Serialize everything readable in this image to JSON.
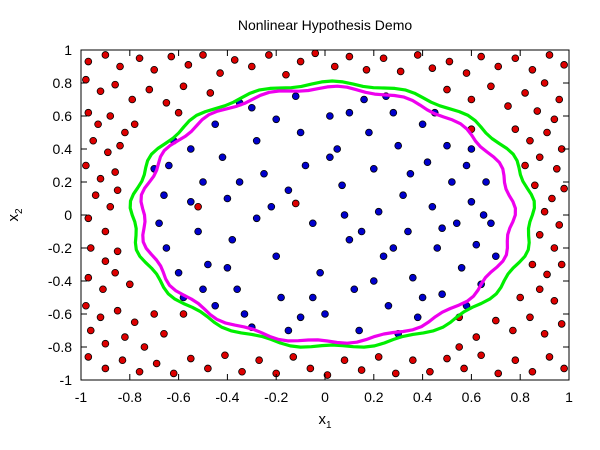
{
  "chart_data": {
    "type": "scatter",
    "title": "Nonlinear Hypothesis Demo",
    "xlabel": "x",
    "xlabel_sub": "1",
    "ylabel": "x",
    "ylabel_sub": "2",
    "xlim": [
      -1,
      1
    ],
    "ylim": [
      -1,
      1
    ],
    "xticks": [
      "-1",
      "-0.8",
      "-0.6",
      "-0.4",
      "-0.2",
      "0",
      "0.2",
      "0.4",
      "0.6",
      "0.8",
      "1"
    ],
    "yticks": [
      "-1",
      "-0.8",
      "-0.6",
      "-0.4",
      "-0.2",
      "0",
      "0.2",
      "0.4",
      "0.6",
      "0.8",
      "1"
    ],
    "grid": false,
    "legend": false,
    "series": [
      {
        "kind": "points",
        "color": "#dd0000",
        "points": [
          [
            -0.97,
            0.93
          ],
          [
            -0.9,
            0.97
          ],
          [
            -0.84,
            0.9
          ],
          [
            -0.76,
            0.95
          ],
          [
            -0.7,
            0.88
          ],
          [
            -0.63,
            0.96
          ],
          [
            -0.56,
            0.91
          ],
          [
            -0.5,
            0.97
          ],
          [
            -0.43,
            0.86
          ],
          [
            -0.37,
            0.94
          ],
          [
            -0.3,
            0.9
          ],
          [
            -0.23,
            0.97
          ],
          [
            -0.16,
            0.85
          ],
          [
            -0.1,
            0.93
          ],
          [
            -0.04,
            0.98
          ],
          [
            0.04,
            0.9
          ],
          [
            0.1,
            0.96
          ],
          [
            0.17,
            0.88
          ],
          [
            0.24,
            0.95
          ],
          [
            0.31,
            0.87
          ],
          [
            0.38,
            0.97
          ],
          [
            0.44,
            0.89
          ],
          [
            0.51,
            0.93
          ],
          [
            0.58,
            0.86
          ],
          [
            0.64,
            0.96
          ],
          [
            0.71,
            0.9
          ],
          [
            0.78,
            0.95
          ],
          [
            0.85,
            0.88
          ],
          [
            0.92,
            0.97
          ],
          [
            0.98,
            0.91
          ],
          [
            -0.98,
            0.82
          ],
          [
            -0.92,
            0.75
          ],
          [
            -0.86,
            0.79
          ],
          [
            -0.79,
            0.7
          ],
          [
            -0.72,
            0.76
          ],
          [
            -0.65,
            0.68
          ],
          [
            -0.58,
            0.78
          ],
          [
            -0.47,
            0.74
          ],
          [
            0.5,
            0.76
          ],
          [
            0.6,
            0.7
          ],
          [
            0.68,
            0.78
          ],
          [
            0.75,
            0.66
          ],
          [
            0.82,
            0.74
          ],
          [
            0.9,
            0.8
          ],
          [
            0.96,
            0.7
          ],
          [
            0.87,
            0.63
          ],
          [
            0.94,
            0.58
          ],
          [
            -0.97,
            0.62
          ],
          [
            -0.93,
            0.55
          ],
          [
            -0.88,
            0.6
          ],
          [
            -0.82,
            0.5
          ],
          [
            -0.95,
            0.45
          ],
          [
            -0.89,
            0.38
          ],
          [
            -0.84,
            0.42
          ],
          [
            -0.78,
            0.55
          ],
          [
            0.78,
            0.52
          ],
          [
            0.84,
            0.45
          ],
          [
            0.91,
            0.5
          ],
          [
            0.97,
            0.4
          ],
          [
            0.88,
            0.35
          ],
          [
            0.82,
            0.3
          ],
          [
            0.95,
            0.28
          ],
          [
            -0.98,
            0.3
          ],
          [
            -0.92,
            0.22
          ],
          [
            -0.86,
            0.26
          ],
          [
            -0.94,
            0.12
          ],
          [
            -0.88,
            0.05
          ],
          [
            -0.97,
            -0.02
          ],
          [
            -0.9,
            -0.1
          ],
          [
            -0.85,
            0.15
          ],
          [
            0.86,
            0.18
          ],
          [
            0.93,
            0.1
          ],
          [
            0.98,
            0.16
          ],
          [
            0.9,
            0.02
          ],
          [
            0.96,
            -0.06
          ],
          [
            0.88,
            -0.12
          ],
          [
            0.94,
            -0.2
          ],
          [
            -0.96,
            -0.2
          ],
          [
            -0.9,
            -0.28
          ],
          [
            -0.85,
            -0.22
          ],
          [
            -0.97,
            -0.38
          ],
          [
            -0.91,
            -0.45
          ],
          [
            -0.86,
            -0.35
          ],
          [
            -0.8,
            -0.42
          ],
          [
            0.85,
            -0.3
          ],
          [
            0.91,
            -0.36
          ],
          [
            0.97,
            -0.3
          ],
          [
            0.88,
            -0.45
          ],
          [
            0.8,
            -0.5
          ],
          [
            0.94,
            -0.52
          ],
          [
            -0.98,
            -0.55
          ],
          [
            -0.92,
            -0.62
          ],
          [
            -0.85,
            -0.58
          ],
          [
            -0.78,
            -0.65
          ],
          [
            -0.7,
            -0.6
          ],
          [
            -0.96,
            -0.7
          ],
          [
            -0.9,
            -0.78
          ],
          [
            -0.82,
            -0.74
          ],
          [
            -0.74,
            -0.8
          ],
          [
            -0.66,
            -0.72
          ],
          [
            0.7,
            -0.64
          ],
          [
            0.77,
            -0.7
          ],
          [
            0.84,
            -0.62
          ],
          [
            0.9,
            -0.72
          ],
          [
            0.97,
            -0.66
          ],
          [
            0.62,
            -0.74
          ],
          [
            0.55,
            -0.8
          ],
          [
            -0.97,
            -0.86
          ],
          [
            -0.9,
            -0.93
          ],
          [
            -0.83,
            -0.88
          ],
          [
            -0.76,
            -0.95
          ],
          [
            -0.69,
            -0.9
          ],
          [
            -0.62,
            -0.96
          ],
          [
            -0.55,
            -0.87
          ],
          [
            -0.48,
            -0.93
          ],
          [
            -0.41,
            -0.85
          ],
          [
            -0.34,
            -0.95
          ],
          [
            -0.27,
            -0.88
          ],
          [
            -0.2,
            -0.96
          ],
          [
            -0.13,
            -0.86
          ],
          [
            -0.06,
            -0.93
          ],
          [
            0.01,
            -0.97
          ],
          [
            0.08,
            -0.88
          ],
          [
            0.15,
            -0.94
          ],
          [
            0.22,
            -0.86
          ],
          [
            0.29,
            -0.96
          ],
          [
            0.36,
            -0.88
          ],
          [
            0.43,
            -0.95
          ],
          [
            0.5,
            -0.87
          ],
          [
            0.57,
            -0.93
          ],
          [
            0.64,
            -0.85
          ],
          [
            0.71,
            -0.96
          ],
          [
            0.78,
            -0.88
          ],
          [
            0.85,
            -0.95
          ],
          [
            0.92,
            -0.86
          ],
          [
            0.98,
            -0.93
          ],
          [
            -0.12,
            0.07
          ],
          [
            -0.52,
            0.05
          ],
          [
            -0.58,
            -0.6
          ],
          [
            -0.6,
            0.62
          ],
          [
            0.55,
            -0.62
          ],
          [
            0.6,
            0.52
          ]
        ]
      },
      {
        "kind": "points",
        "color": "#0000cc",
        "points": [
          [
            -0.7,
            0.28
          ],
          [
            -0.66,
            0.12
          ],
          [
            -0.68,
            -0.05
          ],
          [
            -0.65,
            -0.2
          ],
          [
            -0.6,
            -0.35
          ],
          [
            -0.55,
            0.4
          ],
          [
            -0.5,
            0.2
          ],
          [
            -0.52,
            -0.1
          ],
          [
            -0.48,
            -0.3
          ],
          [
            -0.45,
            0.55
          ],
          [
            -0.42,
            0.35
          ],
          [
            -0.4,
            0.1
          ],
          [
            -0.38,
            -0.15
          ],
          [
            -0.36,
            -0.45
          ],
          [
            -0.33,
            -0.6
          ],
          [
            -0.3,
            0.65
          ],
          [
            -0.28,
            0.45
          ],
          [
            -0.25,
            0.25
          ],
          [
            -0.22,
            0.05
          ],
          [
            -0.2,
            -0.25
          ],
          [
            -0.18,
            -0.5
          ],
          [
            -0.15,
            -0.7
          ],
          [
            -0.12,
            0.72
          ],
          [
            -0.1,
            0.5
          ],
          [
            -0.08,
            0.3
          ],
          [
            -0.05,
            -0.05
          ],
          [
            -0.02,
            -0.35
          ],
          [
            0.0,
            -0.6
          ],
          [
            0.02,
            0.6
          ],
          [
            0.05,
            0.4
          ],
          [
            0.07,
            0.18
          ],
          [
            0.1,
            -0.15
          ],
          [
            0.12,
            -0.45
          ],
          [
            0.14,
            -0.7
          ],
          [
            0.16,
            0.7
          ],
          [
            0.18,
            0.5
          ],
          [
            0.2,
            0.28
          ],
          [
            0.22,
            0.02
          ],
          [
            0.24,
            -0.25
          ],
          [
            0.26,
            -0.55
          ],
          [
            0.28,
            0.62
          ],
          [
            0.3,
            0.42
          ],
          [
            0.32,
            0.12
          ],
          [
            0.34,
            -0.1
          ],
          [
            0.36,
            -0.38
          ],
          [
            0.38,
            -0.62
          ],
          [
            0.4,
            0.55
          ],
          [
            0.42,
            0.32
          ],
          [
            0.44,
            0.05
          ],
          [
            0.46,
            -0.2
          ],
          [
            0.48,
            -0.48
          ],
          [
            0.5,
            0.42
          ],
          [
            0.52,
            0.2
          ],
          [
            0.54,
            -0.05
          ],
          [
            0.56,
            -0.32
          ],
          [
            0.58,
            0.3
          ],
          [
            0.6,
            0.08
          ],
          [
            0.62,
            -0.18
          ],
          [
            0.64,
            -0.42
          ],
          [
            0.66,
            0.2
          ],
          [
            0.68,
            -0.05
          ],
          [
            0.7,
            -0.25
          ],
          [
            -0.62,
            0.45
          ],
          [
            -0.58,
            -0.5
          ],
          [
            -0.35,
            0.68
          ],
          [
            -0.3,
            -0.68
          ],
          [
            0.25,
            0.72
          ],
          [
            0.3,
            -0.72
          ],
          [
            -0.45,
            -0.55
          ],
          [
            0.45,
            0.62
          ],
          [
            0.58,
            -0.55
          ],
          [
            -0.64,
            0.3
          ],
          [
            0.08,
            0.0
          ],
          [
            -0.15,
            0.15
          ],
          [
            0.15,
            -0.1
          ],
          [
            -0.28,
            -0.02
          ],
          [
            0.35,
            0.25
          ],
          [
            -0.4,
            -0.32
          ],
          [
            0.02,
            0.35
          ],
          [
            -0.05,
            -0.5
          ],
          [
            0.48,
            -0.08
          ],
          [
            -0.55,
            0.08
          ],
          [
            0.6,
            0.4
          ],
          [
            -0.2,
            0.58
          ],
          [
            0.1,
            0.62
          ],
          [
            -0.1,
            -0.62
          ],
          [
            0.4,
            -0.5
          ],
          [
            -0.5,
            -0.45
          ],
          [
            0.2,
            -0.4
          ],
          [
            -0.35,
            0.2
          ],
          [
            0.28,
            -0.2
          ],
          [
            0.65,
            0.0
          ]
        ]
      },
      {
        "kind": "boundary",
        "color": "#00ee00",
        "center": [
          0.03,
          0.0
        ],
        "rx": 0.82,
        "ry": 0.8
      },
      {
        "kind": "boundary",
        "color": "#ee00ee",
        "center": [
          0.01,
          0.0
        ],
        "rx": 0.76,
        "ry": 0.77
      }
    ]
  }
}
